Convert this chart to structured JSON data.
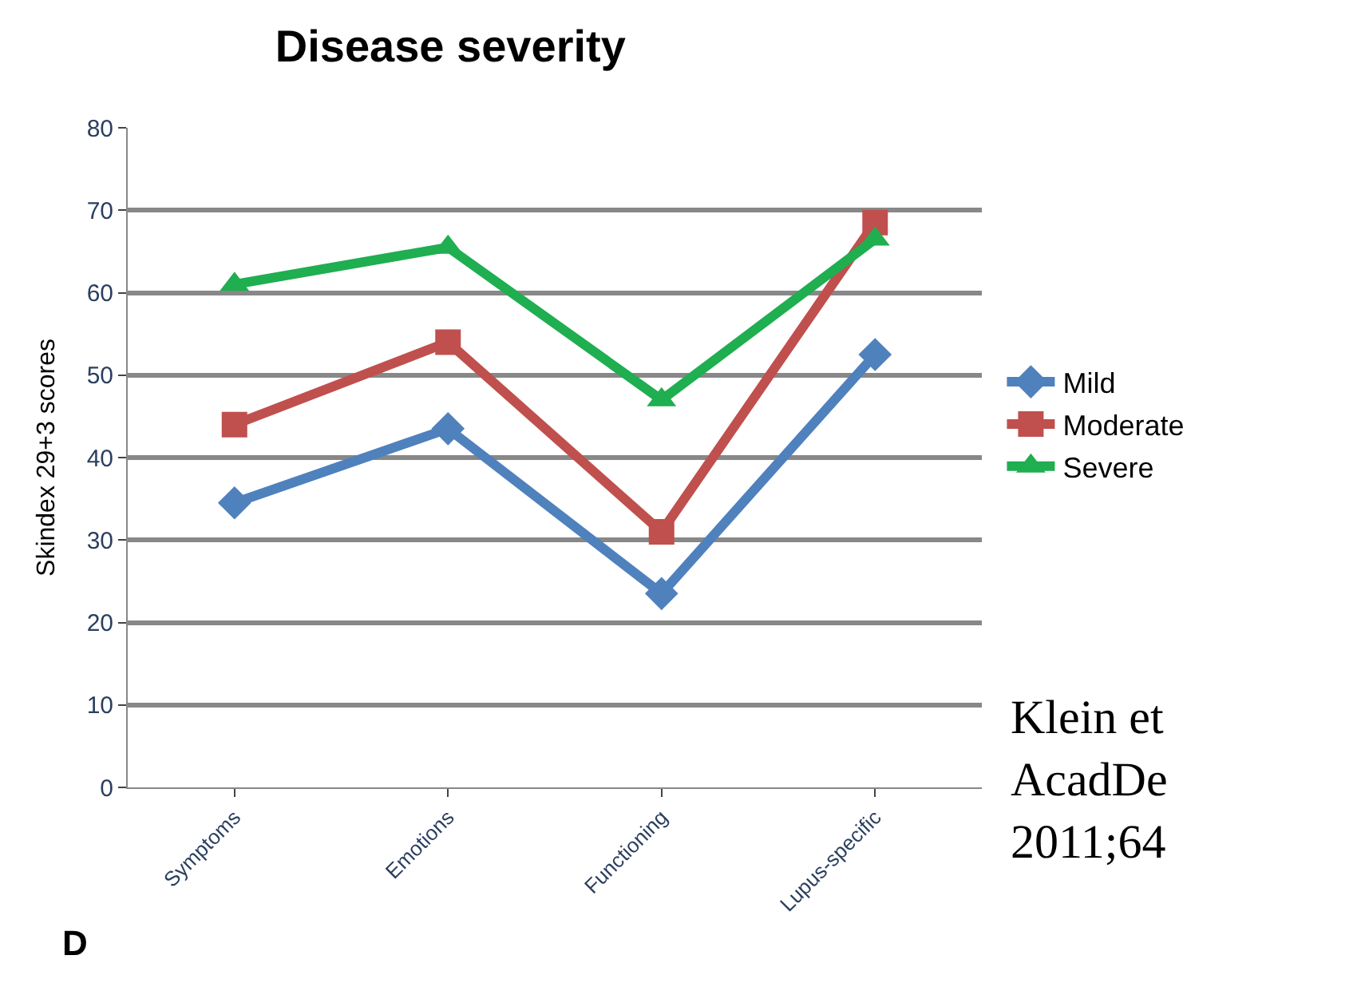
{
  "chart_data": {
    "type": "line",
    "title": "Disease severity",
    "ylabel": "Skindex 29+3 scores",
    "categories": [
      "Symptoms",
      "Emotions",
      "Functioning",
      "Lupus-specific"
    ],
    "series": [
      {
        "name": "Mild",
        "color": "#4f81bd",
        "marker": "diamond",
        "values": [
          34.5,
          43.5,
          23.5,
          52.5
        ]
      },
      {
        "name": "Moderate",
        "color": "#c0504d",
        "marker": "square",
        "values": [
          44,
          54,
          31,
          68.5
        ]
      },
      {
        "name": "Severe",
        "color": "#1fae50",
        "marker": "triangle",
        "values": [
          61,
          65.5,
          47,
          66.5
        ]
      }
    ],
    "ylim": [
      0,
      80
    ],
    "yticks": [
      0,
      10,
      20,
      30,
      40,
      50,
      60,
      70,
      80
    ],
    "grid": "y",
    "legend": "right",
    "annotations": [
      "Klein et\nAcadDe\n2011;64",
      "D"
    ]
  }
}
